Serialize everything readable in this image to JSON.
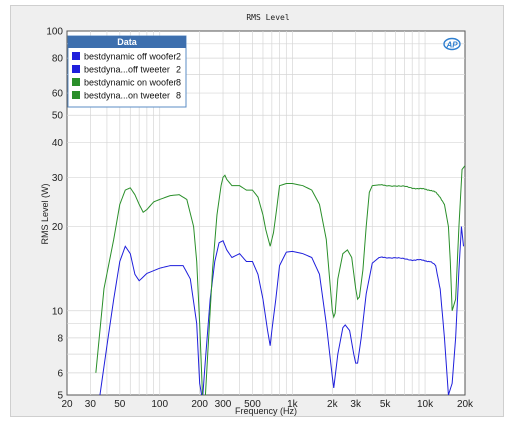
{
  "chart_data": {
    "type": "line",
    "title": "RMS Level",
    "xlabel": "Frequency (Hz)",
    "ylabel": "RMS Level (W)",
    "x_scale": "log",
    "y_scale": "log",
    "xlim": [
      20,
      20000
    ],
    "ylim": [
      5,
      100
    ],
    "grid": true,
    "legend_position": "top-left",
    "legend_title": "Data",
    "logo_text": "AP",
    "x_ticks": [
      {
        "value": 20,
        "label": "20"
      },
      {
        "value": 30,
        "label": "30"
      },
      {
        "value": 50,
        "label": "50"
      },
      {
        "value": 100,
        "label": "100"
      },
      {
        "value": 200,
        "label": "200"
      },
      {
        "value": 300,
        "label": "300"
      },
      {
        "value": 500,
        "label": "500"
      },
      {
        "value": 1000,
        "label": "1k"
      },
      {
        "value": 2000,
        "label": "2k"
      },
      {
        "value": 3000,
        "label": "3k"
      },
      {
        "value": 5000,
        "label": "5k"
      },
      {
        "value": 10000,
        "label": "10k"
      },
      {
        "value": 20000,
        "label": "20k"
      }
    ],
    "y_ticks": [
      {
        "value": 5,
        "label": "5"
      },
      {
        "value": 6,
        "label": "6"
      },
      {
        "value": 8,
        "label": "8"
      },
      {
        "value": 10,
        "label": "10"
      },
      {
        "value": 20,
        "label": "20"
      },
      {
        "value": 30,
        "label": "30"
      },
      {
        "value": 40,
        "label": "40"
      },
      {
        "value": 50,
        "label": "50"
      },
      {
        "value": 60,
        "label": "60"
      },
      {
        "value": 80,
        "label": "80"
      },
      {
        "value": 100,
        "label": "100"
      }
    ],
    "series": [
      {
        "name": "bestdynamic off woofer",
        "channel": "2",
        "color": "#1f1fdc",
        "x": [
          35,
          40,
          45,
          50,
          55,
          60,
          65,
          70,
          80,
          100,
          120,
          150,
          170,
          190,
          200,
          210,
          220,
          240,
          260,
          280,
          300,
          320,
          350,
          400,
          450,
          500,
          550,
          600,
          650,
          680,
          700,
          750,
          800,
          900,
          1000,
          1200,
          1400,
          1600,
          1800,
          2000,
          2050,
          2200,
          2400,
          2500,
          2700,
          2900,
          3000,
          3100,
          3300,
          3600,
          4000,
          4500,
          5000,
          6000,
          7000,
          8000,
          9000,
          10000,
          11000,
          12000,
          13000,
          14000,
          15000,
          16000,
          17000,
          18000,
          18800,
          19500
        ],
        "values": [
          4.8,
          7.5,
          11,
          15,
          17,
          16,
          13.5,
          12.8,
          13.6,
          14.2,
          14.5,
          14.5,
          13,
          9,
          5.5,
          4.8,
          6.5,
          11,
          15,
          17.5,
          17.8,
          16.5,
          15.5,
          16,
          15,
          15,
          13.5,
          11,
          8.5,
          7.5,
          8.5,
          11,
          14.5,
          16.2,
          16.3,
          16,
          15.5,
          13.5,
          9,
          5.8,
          5.3,
          7,
          8.7,
          8.9,
          8.5,
          7,
          6.5,
          6.5,
          8,
          11.5,
          14.8,
          15.5,
          15.5,
          15.5,
          15.3,
          15.2,
          15.2,
          15.1,
          15,
          14.5,
          12,
          8,
          5,
          5.5,
          8,
          14,
          20,
          17
        ]
      },
      {
        "name": "bestdyna...off tweeter",
        "channel": "2",
        "color": "#1f1fdc",
        "x": [],
        "values": []
      },
      {
        "name": "bestdynamic on woofer",
        "channel": "8",
        "color": "#2a8f2a",
        "x": [
          33,
          38,
          45,
          50,
          55,
          60,
          65,
          70,
          75,
          80,
          90,
          100,
          120,
          140,
          160,
          180,
          190,
          200,
          210,
          220,
          230,
          250,
          270,
          290,
          300,
          310,
          320,
          350,
          400,
          450,
          500,
          550,
          600,
          630,
          680,
          720,
          760,
          800,
          900,
          1000,
          1200,
          1400,
          1600,
          1800,
          2000,
          2050,
          2100,
          2200,
          2400,
          2600,
          2800,
          3000,
          3100,
          3200,
          3400,
          3600,
          3800,
          4000,
          4500,
          5000,
          6000,
          7000,
          8000,
          9000,
          10000,
          11000,
          12000,
          13000,
          14000,
          15000,
          15500,
          16000,
          17000,
          18000,
          19000,
          20000
        ],
        "values": [
          6,
          12,
          18,
          24,
          27,
          27.5,
          26,
          24,
          22.5,
          23,
          24.5,
          25,
          25.8,
          26,
          25,
          20,
          15,
          9,
          5,
          4.8,
          7,
          14,
          22,
          28,
          30,
          30.5,
          29.5,
          28,
          28,
          27,
          27,
          25.5,
          22,
          19.5,
          17,
          19,
          23,
          28,
          28.5,
          28.5,
          28,
          27,
          24,
          18,
          10,
          9.5,
          9.8,
          13,
          16,
          16.5,
          15.5,
          12,
          11,
          11.2,
          14,
          20,
          26.5,
          28,
          28.2,
          28,
          28,
          27.8,
          27.5,
          27.3,
          27.2,
          27,
          26.5,
          25.5,
          24,
          20,
          15,
          10,
          11,
          20,
          32,
          33
        ]
      },
      {
        "name": "bestdyna...on tweeter",
        "channel": "8",
        "color": "#2a8f2a",
        "x": [],
        "values": []
      }
    ]
  }
}
